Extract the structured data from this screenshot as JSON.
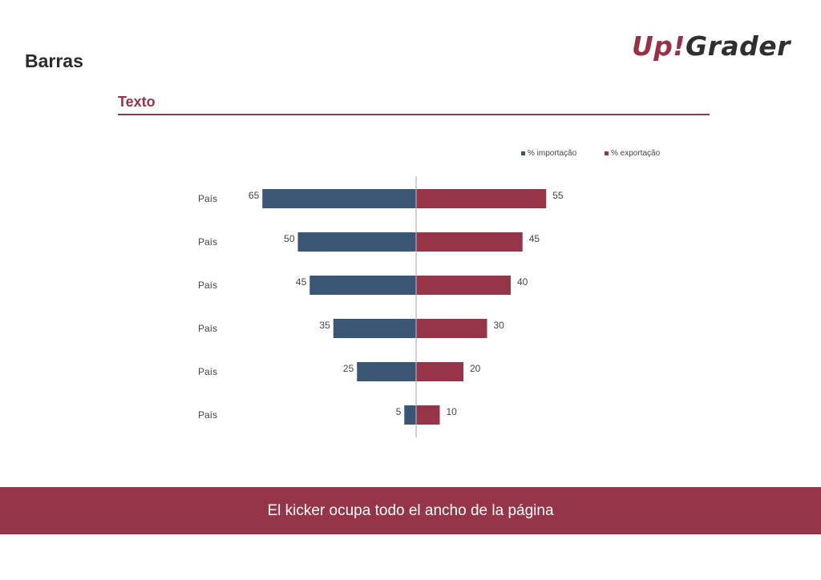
{
  "header": {
    "title": "Barras",
    "logo_text_1": "Up",
    "logo_text_2": "!",
    "logo_text_3": "Grader"
  },
  "section": {
    "subtitle": "Texto"
  },
  "colors": {
    "accent": "#963448",
    "series_import": "#3a5675",
    "series_export": "#963448"
  },
  "chart_data": {
    "type": "bar",
    "orientation": "horizontal-diverging",
    "categories": [
      "País",
      "País",
      "País",
      "País",
      "País",
      "País"
    ],
    "series": [
      {
        "name": "% importação",
        "values": [
          65,
          50,
          45,
          35,
          25,
          5
        ]
      },
      {
        "name": "% exportação",
        "values": [
          55,
          45,
          40,
          30,
          20,
          10
        ]
      }
    ],
    "legend_position": "top-right",
    "grid": false
  },
  "kicker": {
    "text": "El kicker ocupa todo el ancho de la página"
  }
}
